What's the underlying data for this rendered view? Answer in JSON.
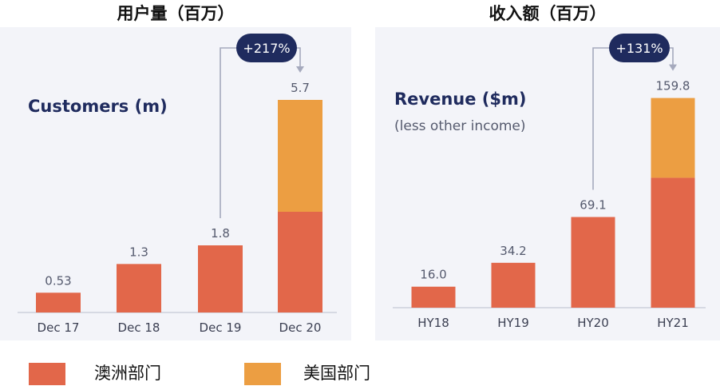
{
  "colors": {
    "australia": "#e2674a",
    "usa": "#ec9e42",
    "navy": "#1f2b5e",
    "axis": "#cdd0dc",
    "label": "#555a6e",
    "connector": "#a5a9bd"
  },
  "legend": [
    {
      "label": "澳洲部门",
      "color": "#e2674a"
    },
    {
      "label": "美国部门",
      "color": "#ec9e42"
    }
  ],
  "chart_data": [
    {
      "type": "bar",
      "title_cn": "用户量（百万）",
      "title": "Customers (m)",
      "subtitle": "",
      "categories": [
        "Dec 17",
        "Dec 18",
        "Dec 19",
        "Dec 20"
      ],
      "series": [
        {
          "name": "澳洲部门",
          "values": [
            0.53,
            1.3,
            1.8,
            2.7
          ]
        },
        {
          "name": "美国部门",
          "values": [
            0,
            0,
            0,
            3.0
          ]
        }
      ],
      "totals": [
        "0.53",
        "1.3",
        "1.8",
        "5.7"
      ],
      "growth": {
        "label": "+217%",
        "from": "Dec 19",
        "to": "Dec 20"
      },
      "ylim": [
        0,
        6.3
      ]
    },
    {
      "type": "bar",
      "title_cn": "收入额（百万）",
      "title": "Revenue ($m)",
      "subtitle": "(less other income)",
      "categories": [
        "HY18",
        "HY19",
        "HY20",
        "HY21"
      ],
      "series": [
        {
          "name": "澳洲部门",
          "values": [
            16.0,
            34.2,
            69.1,
            99.0
          ]
        },
        {
          "name": "美国部门",
          "values": [
            0,
            0,
            0,
            60.8
          ]
        }
      ],
      "totals": [
        "16.0",
        "34.2",
        "69.1",
        "159.8"
      ],
      "growth": {
        "label": "+131%",
        "from": "HY20",
        "to": "HY21"
      },
      "ylim": [
        0,
        176
      ]
    }
  ]
}
